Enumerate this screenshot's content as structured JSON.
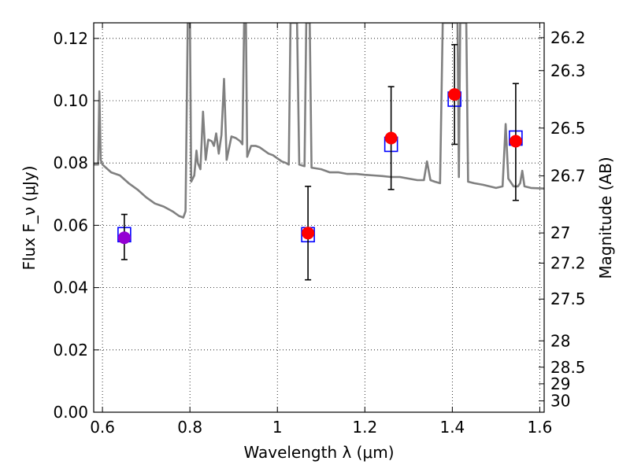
{
  "chart_data": {
    "type": "scatter",
    "xlabel": "Wavelength λ (μm)",
    "ylabel": "Flux F_ν (μJy)",
    "y2label": "Magnitude (AB)",
    "xlim": [
      0.58,
      1.61
    ],
    "ylim": [
      0.0,
      0.125
    ],
    "grid": true,
    "legend": "none",
    "xticks": [
      {
        "value": 0.6,
        "label": "0.6"
      },
      {
        "value": 0.8,
        "label": "0.8"
      },
      {
        "value": 1.0,
        "label": "1"
      },
      {
        "value": 1.2,
        "label": "1.2"
      },
      {
        "value": 1.4,
        "label": "1.4"
      },
      {
        "value": 1.6,
        "label": "1.6"
      }
    ],
    "yticks": [
      {
        "value": 0.0,
        "label": "0.00"
      },
      {
        "value": 0.02,
        "label": "0.02"
      },
      {
        "value": 0.04,
        "label": "0.04"
      },
      {
        "value": 0.06,
        "label": "0.06"
      },
      {
        "value": 0.08,
        "label": "0.08"
      },
      {
        "value": 0.1,
        "label": "0.10"
      },
      {
        "value": 0.12,
        "label": "0.12"
      }
    ],
    "y2ticks": [
      {
        "value": 26.2,
        "label": "26.2"
      },
      {
        "value": 26.3,
        "label": "26.3"
      },
      {
        "value": 26.5,
        "label": "26.5"
      },
      {
        "value": 26.7,
        "label": "26.7"
      },
      {
        "value": 27.0,
        "label": "27"
      },
      {
        "value": 27.2,
        "label": "27.2"
      },
      {
        "value": 27.5,
        "label": "27.5"
      },
      {
        "value": 28.0,
        "label": "28"
      },
      {
        "value": 28.5,
        "label": "28.5"
      },
      {
        "value": 29.0,
        "label": "29"
      },
      {
        "value": 30.0,
        "label": "30"
      }
    ],
    "observed": [
      {
        "x": 0.65,
        "y": 0.056,
        "yerr_lo": 0.049,
        "yerr_hi": 0.0635,
        "color": "#9400d3"
      },
      {
        "x": 1.07,
        "y": 0.0575,
        "yerr_lo": 0.0425,
        "yerr_hi": 0.0725,
        "color": "#ff0000"
      },
      {
        "x": 1.26,
        "y": 0.088,
        "yerr_lo": 0.0715,
        "yerr_hi": 0.1045,
        "color": "#ff0000"
      },
      {
        "x": 1.405,
        "y": 0.102,
        "yerr_lo": 0.086,
        "yerr_hi": 0.118,
        "color": "#ff0000"
      },
      {
        "x": 1.545,
        "y": 0.087,
        "yerr_lo": 0.068,
        "yerr_hi": 0.1055,
        "color": "#ff0000"
      }
    ],
    "model_points": [
      {
        "x": 0.65,
        "y": 0.057
      },
      {
        "x": 1.07,
        "y": 0.057
      },
      {
        "x": 1.26,
        "y": 0.086
      },
      {
        "x": 1.405,
        "y": 0.1005
      },
      {
        "x": 1.545,
        "y": 0.088
      }
    ],
    "spectrum": [
      [
        0.58,
        0.0795
      ],
      [
        0.59,
        0.0795
      ],
      [
        0.593,
        0.103
      ],
      [
        0.596,
        0.081
      ],
      [
        0.6,
        0.0795
      ],
      [
        0.62,
        0.077
      ],
      [
        0.64,
        0.076
      ],
      [
        0.66,
        0.0735
      ],
      [
        0.68,
        0.0715
      ],
      [
        0.7,
        0.069
      ],
      [
        0.72,
        0.067
      ],
      [
        0.74,
        0.066
      ],
      [
        0.76,
        0.0645
      ],
      [
        0.775,
        0.063
      ],
      [
        0.785,
        0.0625
      ],
      [
        0.79,
        0.0645
      ],
      [
        0.795,
        0.125
      ],
      [
        0.8,
        0.125
      ],
      [
        0.803,
        0.074
      ],
      [
        0.81,
        0.076
      ],
      [
        0.815,
        0.084
      ],
      [
        0.818,
        0.08
      ],
      [
        0.824,
        0.078
      ],
      [
        0.83,
        0.0965
      ],
      [
        0.836,
        0.081
      ],
      [
        0.842,
        0.0875
      ],
      [
        0.85,
        0.087
      ],
      [
        0.855,
        0.0855
      ],
      [
        0.86,
        0.0895
      ],
      [
        0.866,
        0.083
      ],
      [
        0.872,
        0.089
      ],
      [
        0.878,
        0.107
      ],
      [
        0.884,
        0.081
      ],
      [
        0.895,
        0.0885
      ],
      [
        0.905,
        0.088
      ],
      [
        0.915,
        0.087
      ],
      [
        0.92,
        0.086
      ],
      [
        0.924,
        0.125
      ],
      [
        0.928,
        0.125
      ],
      [
        0.931,
        0.082
      ],
      [
        0.94,
        0.0855
      ],
      [
        0.95,
        0.0855
      ],
      [
        0.96,
        0.085
      ],
      [
        0.97,
        0.084
      ],
      [
        0.98,
        0.083
      ],
      [
        0.99,
        0.0825
      ],
      [
        1.0,
        0.0815
      ],
      [
        1.01,
        0.0805
      ],
      [
        1.02,
        0.08
      ],
      [
        1.026,
        0.0795
      ],
      [
        1.03,
        0.125
      ],
      [
        1.045,
        0.125
      ],
      [
        1.05,
        0.0795
      ],
      [
        1.062,
        0.079
      ],
      [
        1.066,
        0.125
      ],
      [
        1.074,
        0.125
      ],
      [
        1.078,
        0.0785
      ],
      [
        1.1,
        0.078
      ],
      [
        1.12,
        0.077
      ],
      [
        1.14,
        0.077
      ],
      [
        1.16,
        0.0765
      ],
      [
        1.18,
        0.0765
      ],
      [
        1.2,
        0.0762
      ],
      [
        1.22,
        0.076
      ],
      [
        1.24,
        0.0758
      ],
      [
        1.26,
        0.0755
      ],
      [
        1.28,
        0.0755
      ],
      [
        1.3,
        0.075
      ],
      [
        1.32,
        0.0745
      ],
      [
        1.335,
        0.0745
      ],
      [
        1.342,
        0.0805
      ],
      [
        1.35,
        0.0745
      ],
      [
        1.36,
        0.074
      ],
      [
        1.372,
        0.0735
      ],
      [
        1.378,
        0.125
      ],
      [
        1.412,
        0.125
      ],
      [
        1.415,
        0.0755
      ],
      [
        1.418,
        0.125
      ],
      [
        1.432,
        0.125
      ],
      [
        1.436,
        0.074
      ],
      [
        1.45,
        0.0735
      ],
      [
        1.47,
        0.073
      ],
      [
        1.5,
        0.072
      ],
      [
        1.515,
        0.0725
      ],
      [
        1.522,
        0.0925
      ],
      [
        1.528,
        0.075
      ],
      [
        1.54,
        0.0725
      ],
      [
        1.55,
        0.0725
      ],
      [
        1.555,
        0.0735
      ],
      [
        1.56,
        0.0775
      ],
      [
        1.565,
        0.0725
      ],
      [
        1.58,
        0.072
      ],
      [
        1.61,
        0.0718
      ]
    ]
  }
}
